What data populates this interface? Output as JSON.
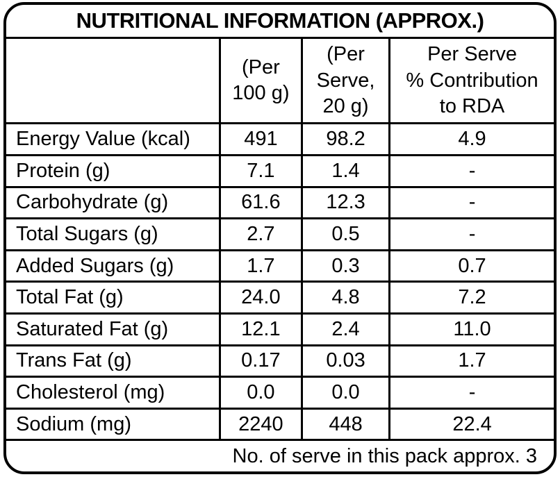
{
  "title": "NUTRITIONAL INFORMATION (APPROX.)",
  "headers": [
    {
      "text": ""
    },
    {
      "text": "(Per\n100 g)"
    },
    {
      "text": "(Per\nServe,\n20 g)"
    },
    {
      "text": "Per Serve\n% Contribution\nto RDA"
    }
  ],
  "rows": [
    {
      "label": "Energy Value (kcal)",
      "per_100g": "491",
      "per_serve": "98.2",
      "rda": "4.9"
    },
    {
      "label": "Protein (g)",
      "per_100g": "7.1",
      "per_serve": "1.4",
      "rda": "-"
    },
    {
      "label": "Carbohydrate (g)",
      "per_100g": "61.6",
      "per_serve": "12.3",
      "rda": "-"
    },
    {
      "label": "Total Sugars (g)",
      "per_100g": "2.7",
      "per_serve": "0.5",
      "rda": "-"
    },
    {
      "label": "Added Sugars (g)",
      "per_100g": "1.7",
      "per_serve": "0.3",
      "rda": "0.7"
    },
    {
      "label": "Total Fat (g)",
      "per_100g": "24.0",
      "per_serve": "4.8",
      "rda": "7.2"
    },
    {
      "label": "Saturated Fat (g)",
      "per_100g": "12.1",
      "per_serve": "2.4",
      "rda": "11.0"
    },
    {
      "label": "Trans Fat (g)",
      "per_100g": "0.17",
      "per_serve": "0.03",
      "rda": "1.7"
    },
    {
      "label": "Cholesterol (mg)",
      "per_100g": "0.0",
      "per_serve": "0.0",
      "rda": "-"
    },
    {
      "label": "Sodium (mg)",
      "per_100g": "2240",
      "per_serve": "448",
      "rda": "22.4"
    }
  ],
  "footer_note": "No. of serve in this pack approx. 3",
  "colors": {
    "border": "#000000",
    "background": "#ffffff",
    "text": "#000000"
  }
}
